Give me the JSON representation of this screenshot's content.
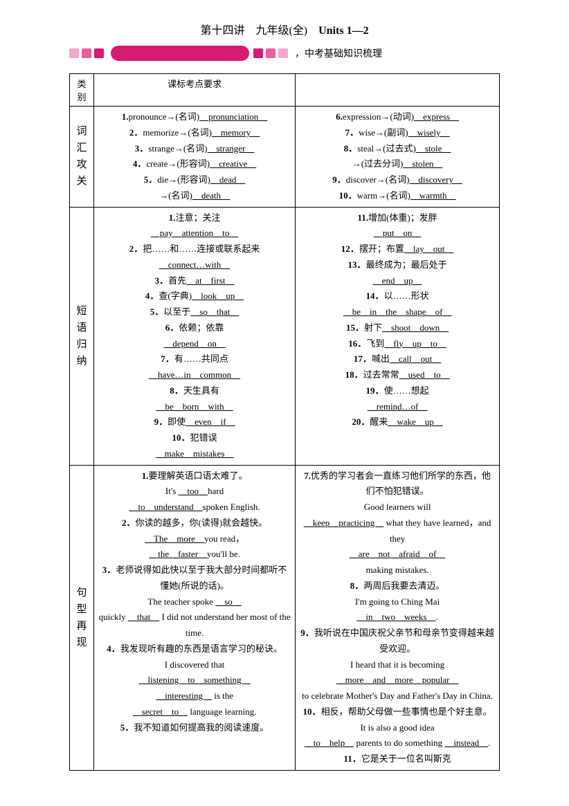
{
  "title": {
    "lecture": "第十四讲　九年级(全)　",
    "units": "Units 1—2"
  },
  "banner": {
    "colors": {
      "sq1": "#f3a7c9",
      "sq2": "#e85f9d",
      "sq3": "#d41c71",
      "bar": "#d41c71",
      "sq4": "#d41c71",
      "sq5": "#e85f9d",
      "sq6": "#f3a7c9"
    },
    "label": "，中考基础知识梳理"
  },
  "headers": {
    "col1": "类别",
    "col2": "课标考点要求",
    "col3": ""
  },
  "rows": {
    "vocab": {
      "cat": "词\n汇\n攻\n关",
      "left": [
        {
          "n": "1.",
          "t1": "pronounce→(名词)",
          "u": "　pronunciation　"
        },
        {
          "n": "2．",
          "t1": "memorize→(名词)",
          "u": "　memory　"
        },
        {
          "n": "3．",
          "t1": "strange→(名词)",
          "u": "　stranger　"
        },
        {
          "n": "4．",
          "t1": "create→(形容词)",
          "u": "　creative　"
        },
        {
          "n": "5．",
          "t1": "die→(形容词)",
          "u": "　dead　",
          "t2": "→(名词)",
          "u2": "　death　"
        }
      ],
      "right": [
        {
          "n": "6.",
          "t1": "expression→(动词)",
          "u": "　express　"
        },
        {
          "n": "7．",
          "t1": "wise→(副词)",
          "u": "　wisely　"
        },
        {
          "n": "8．",
          "t1": "steal→(过去式)",
          "u": "　stole　",
          "t2": "→(过去分词)",
          "u2": "　stolen　"
        },
        {
          "n": "9．",
          "t1": "discover→(名词)",
          "u": "　discovery　"
        },
        {
          "n": "10．",
          "t1": "warm→(名词)",
          "u": "　warmth　"
        }
      ]
    },
    "phrase": {
      "cat": "短\n语\n归\n纳",
      "left": [
        {
          "n": "1.",
          "t": "注意；关注",
          "u": "　pay　attention　to　"
        },
        {
          "n": "2．",
          "t": "把……和……连接或联系起来",
          "u": "　connect…with　"
        },
        {
          "n": "3．",
          "t": "首先",
          "u": "　at　first　"
        },
        {
          "n": "4．",
          "t": "查(字典)",
          "u": "　look　up　"
        },
        {
          "n": "5．",
          "t": "以至于",
          "u": "　so　that　"
        },
        {
          "n": "6．",
          "t": "依赖；依靠",
          "u": "　depend　on　"
        },
        {
          "n": "7．",
          "t": "有……共同点",
          "u": "　have…in　common　"
        },
        {
          "n": "8．",
          "t": "天生具有",
          "u": "　be　born　with　"
        },
        {
          "n": "9．",
          "t": "即使",
          "u": "　even　if　"
        },
        {
          "n": "10．",
          "t": "犯错误",
          "u": "　make　mistakes　"
        }
      ],
      "right": [
        {
          "n": "11.",
          "t": "增加(体重)；发胖",
          "u": "　put　on　"
        },
        {
          "n": "12．",
          "t": "摆开；布置",
          "u": "　lay　out　"
        },
        {
          "n": "13．",
          "t": "最终成为；最后处于",
          "u": "　end　up　"
        },
        {
          "n": "14．",
          "t": "以……形状",
          "u": "　be　in　the　shape　of　"
        },
        {
          "n": "15．",
          "t": "射下",
          "u": "　shoot　down　"
        },
        {
          "n": "16．",
          "t": "飞到",
          "u": "　fly　up　to　"
        },
        {
          "n": "17．",
          "t": "喊出",
          "u": "　call　out　"
        },
        {
          "n": "18．",
          "t": "过去常常",
          "u": "　used　to　"
        },
        {
          "n": "19．",
          "t": "使……想起",
          "u": "　remind…of　"
        },
        {
          "n": "20．",
          "t": "醒来",
          "u": "　wake　up　"
        }
      ]
    },
    "sentence": {
      "cat": "句\n型\n再\n现",
      "left_html": "sentence_left",
      "right_html": "sentence_right"
    }
  },
  "sentence_left": {
    "items": [
      {
        "n": "1.",
        "cn": "要理解英语口语太难了。",
        "en_pre": "It's ",
        "u1": "　too　",
        "en_mid": "hard",
        "br": true,
        "u2": "　to　understand　",
        "en_end": "spoken English."
      },
      {
        "n": "2．",
        "cn": "你读的越多，你(读得)就会越快。",
        "lines": [
          {
            "u": "　The　more　",
            "t": "you read，"
          },
          {
            "u": "　the　faster　",
            "t": "you'll be."
          }
        ]
      },
      {
        "n": "3．",
        "cn": "老师说得如此快以至于我大部分时间都听不懂她(所说的话)。",
        "en": "The teacher spoke ",
        "u1": "　so　",
        "en2": " quickly ",
        "u2": "　that　",
        "en3": " I did not understand her most of the time."
      },
      {
        "n": "4．",
        "cn": "我发现听有趣的东西是语言学习的秘诀。",
        "en": "I discovered that",
        "u1": "　listening　to　something　",
        "br": true,
        "u2": "　interesting　",
        "en2": " is the",
        "u3": "　secret　to　",
        "en3": " language learning."
      },
      {
        "n": "5．",
        "cn": "我不知道如何提高我的阅读速度。"
      }
    ]
  },
  "sentence_right": {
    "items": [
      {
        "n": "7.",
        "cn": "优秀的学习者会一直练习他们所学的东西，他们不怕犯错误。",
        "en": "Good learners will",
        "u1": "　keep　practicing　",
        "en2": " what they have learned，and they",
        "u2": "　are　not　afraid　of　",
        "en3": " making mistakes."
      },
      {
        "n": "8．",
        "cn": "两周后我要去清迈。",
        "en": "I'm going to Ching Mai",
        "u1": "　in　two　weeks　",
        "en2": "."
      },
      {
        "n": "9．",
        "cn": "我听说在中国庆祝父亲节和母亲节变得越来越受欢迎。",
        "en": "I heard that it is becoming",
        "u1": "　more　and　more　popular　",
        "en2": " to celebrate Mother's Day and Father's Day in China."
      },
      {
        "n": "10．",
        "cn": "相反，帮助父母做一些事情也是个好主意。",
        "en": "It is also a good idea",
        "u1": "　to　help　",
        "en2": " parents to do something ",
        "u2": "　instead　",
        "en3": "."
      },
      {
        "n": "11．",
        "cn": "它是关于一位名叫斯克"
      }
    ]
  }
}
